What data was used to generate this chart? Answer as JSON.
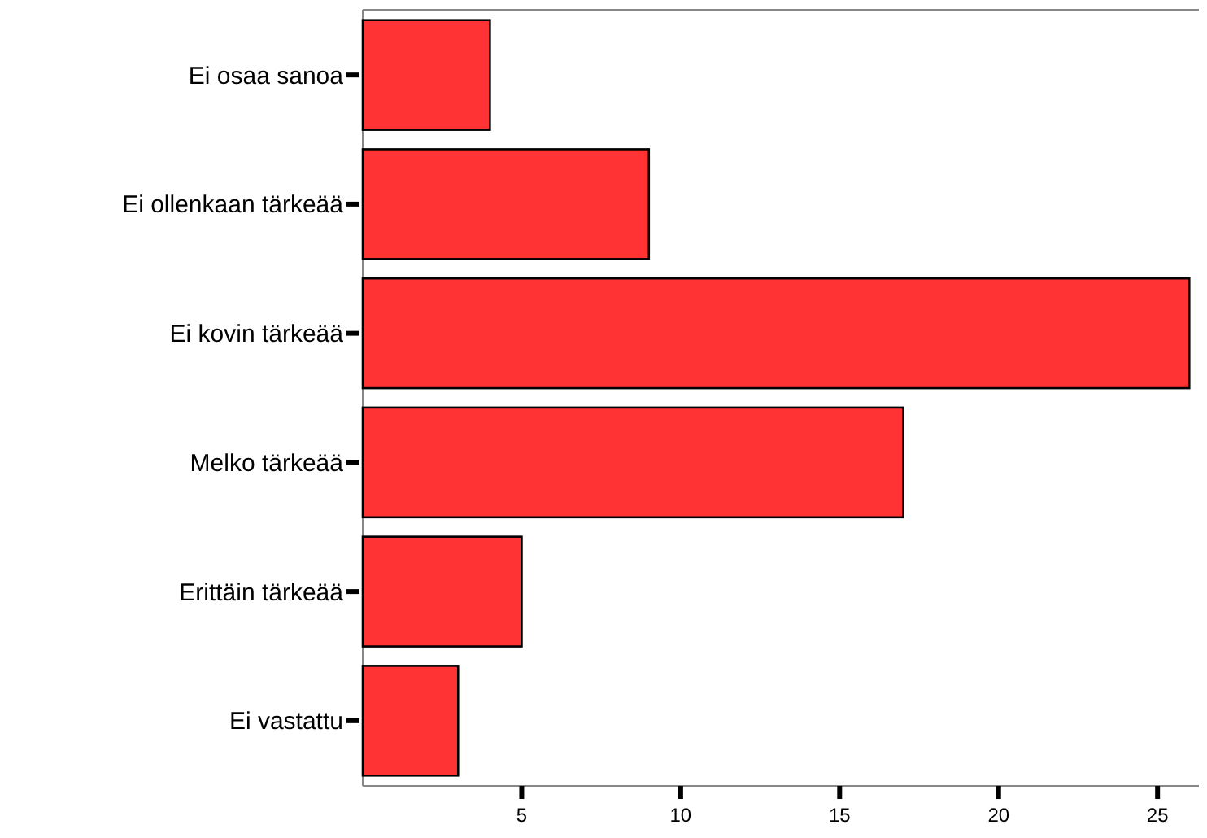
{
  "chart_data": {
    "type": "bar",
    "orientation": "horizontal",
    "categories": [
      "Ei osaa sanoa",
      "Ei ollenkaan tärkeää",
      "Ei kovin tärkeää",
      "Melko tärkeää",
      "Erittäin tärkeää",
      "Ei vastattu"
    ],
    "values": [
      4,
      9,
      26,
      17,
      5,
      3
    ],
    "color": "#ff3333",
    "xlim": [
      0,
      26.3
    ],
    "xticks": [
      5,
      10,
      15,
      20,
      25
    ]
  }
}
